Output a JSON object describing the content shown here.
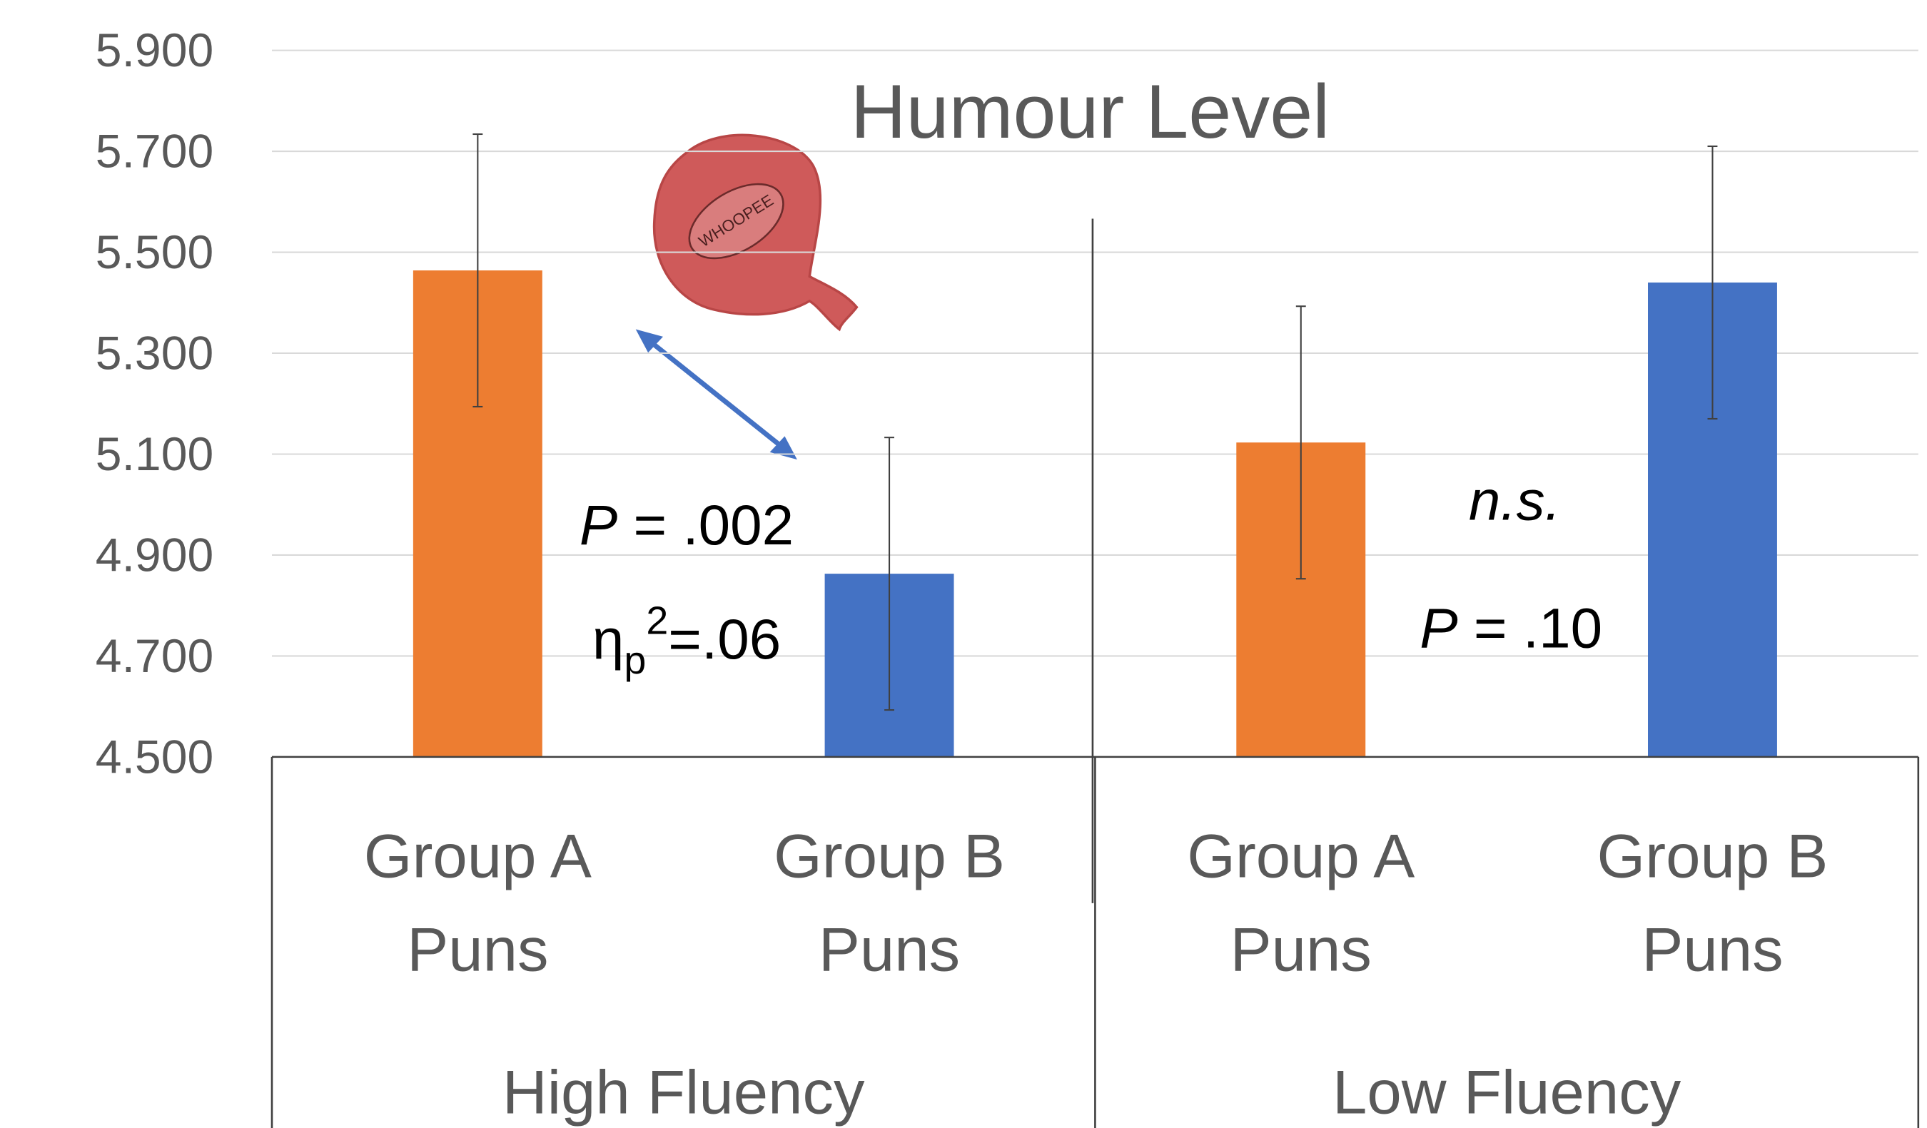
{
  "chart_data": {
    "type": "bar",
    "title": "Humour Level",
    "categories": [
      [
        "Group A",
        "Puns"
      ],
      [
        "Group B",
        "Puns"
      ],
      [
        "Group A",
        "Puns"
      ],
      [
        "Group B",
        "Puns"
      ]
    ],
    "groups": [
      {
        "name": "High Fluency",
        "size": 2
      },
      {
        "name": "Low Fluency",
        "size": 2
      }
    ],
    "values": [
      5.464,
      4.863,
      5.123,
      5.44
    ],
    "errors": [
      0.27,
      0.27,
      0.27,
      0.27
    ],
    "colors": [
      "#ed7d31",
      "#4472c4",
      "#ed7d31",
      "#4472c4"
    ],
    "ylim": [
      4.5,
      5.9
    ],
    "yticks": [
      {
        "value": 4.5,
        "label": "4.500"
      },
      {
        "value": 4.7,
        "label": "4.700"
      },
      {
        "value": 4.9,
        "label": "4.900"
      },
      {
        "value": 5.1,
        "label": "5.100"
      },
      {
        "value": 5.3,
        "label": "5.300"
      },
      {
        "value": 5.5,
        "label": "5.500"
      },
      {
        "value": 5.7,
        "label": "5.700"
      },
      {
        "value": 5.9,
        "label": "5.900"
      }
    ],
    "grid": true,
    "annotations": [
      {
        "segments": [
          {
            "text": "P",
            "style": "italic"
          },
          {
            "text": " = .002"
          }
        ]
      },
      {
        "segments": [
          {
            "text": "η"
          },
          {
            "text": "p",
            "style": "sub"
          },
          {
            "text": "2",
            "style": "sup"
          },
          {
            "text": "=.06"
          }
        ]
      },
      {
        "segments": [
          {
            "text": "n.s.",
            "style": "italic"
          }
        ]
      },
      {
        "segments": [
          {
            "text": "P",
            "style": "italic"
          },
          {
            "text": " = .10"
          }
        ]
      }
    ],
    "image_label": "WHOOPEE"
  }
}
